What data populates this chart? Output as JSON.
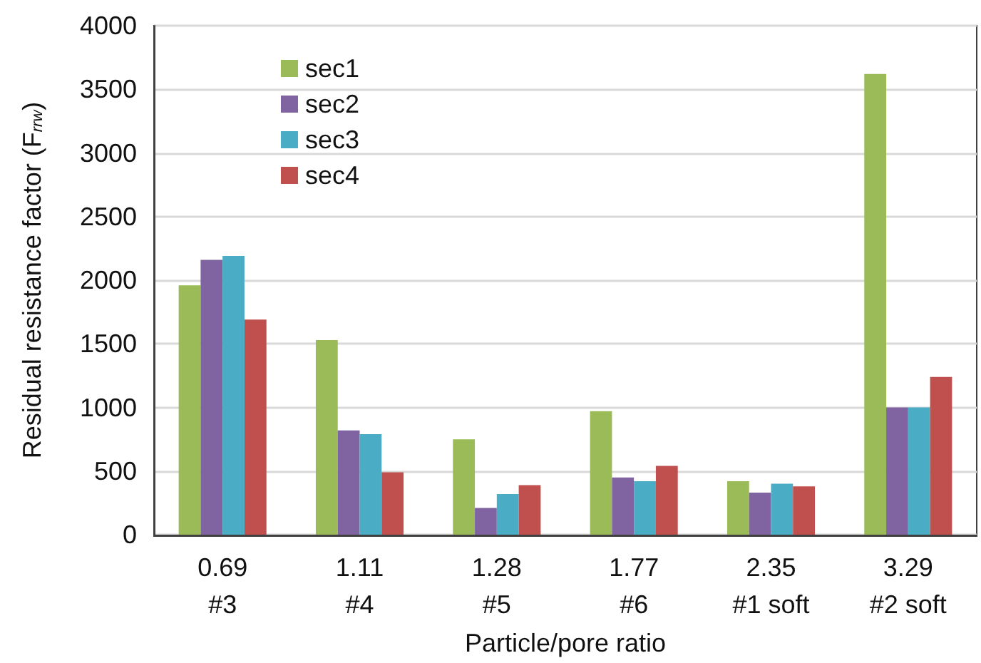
{
  "chart_data": {
    "type": "bar",
    "xlabel": "Particle/pore ratio",
    "ylabel": "Residual resistance factor (F$_{rrw}$)",
    "categories": [
      "0.69\n#3",
      "1.11\n#4",
      "1.28\n#5",
      "1.77\n#6",
      "2.35\n#1 soft",
      "3.29\n#2 soft"
    ],
    "series": [
      {
        "name": "sec1",
        "color": "#9bbb59",
        "values": [
          1960,
          1530,
          750,
          970,
          420,
          3620
        ]
      },
      {
        "name": "sec2",
        "color": "#8064a2",
        "values": [
          2160,
          820,
          210,
          450,
          330,
          1000
        ]
      },
      {
        "name": "sec3",
        "color": "#4bacc6",
        "values": [
          2190,
          790,
          320,
          420,
          400,
          1000
        ]
      },
      {
        "name": "sec4",
        "color": "#c0504d",
        "values": [
          1690,
          490,
          390,
          540,
          380,
          1240
        ]
      }
    ],
    "ylim": [
      0,
      4000
    ],
    "yticks": [
      0,
      500,
      1000,
      1500,
      2000,
      2500,
      3000,
      3500,
      4000
    ],
    "grid": "y",
    "legend": "top left"
  }
}
